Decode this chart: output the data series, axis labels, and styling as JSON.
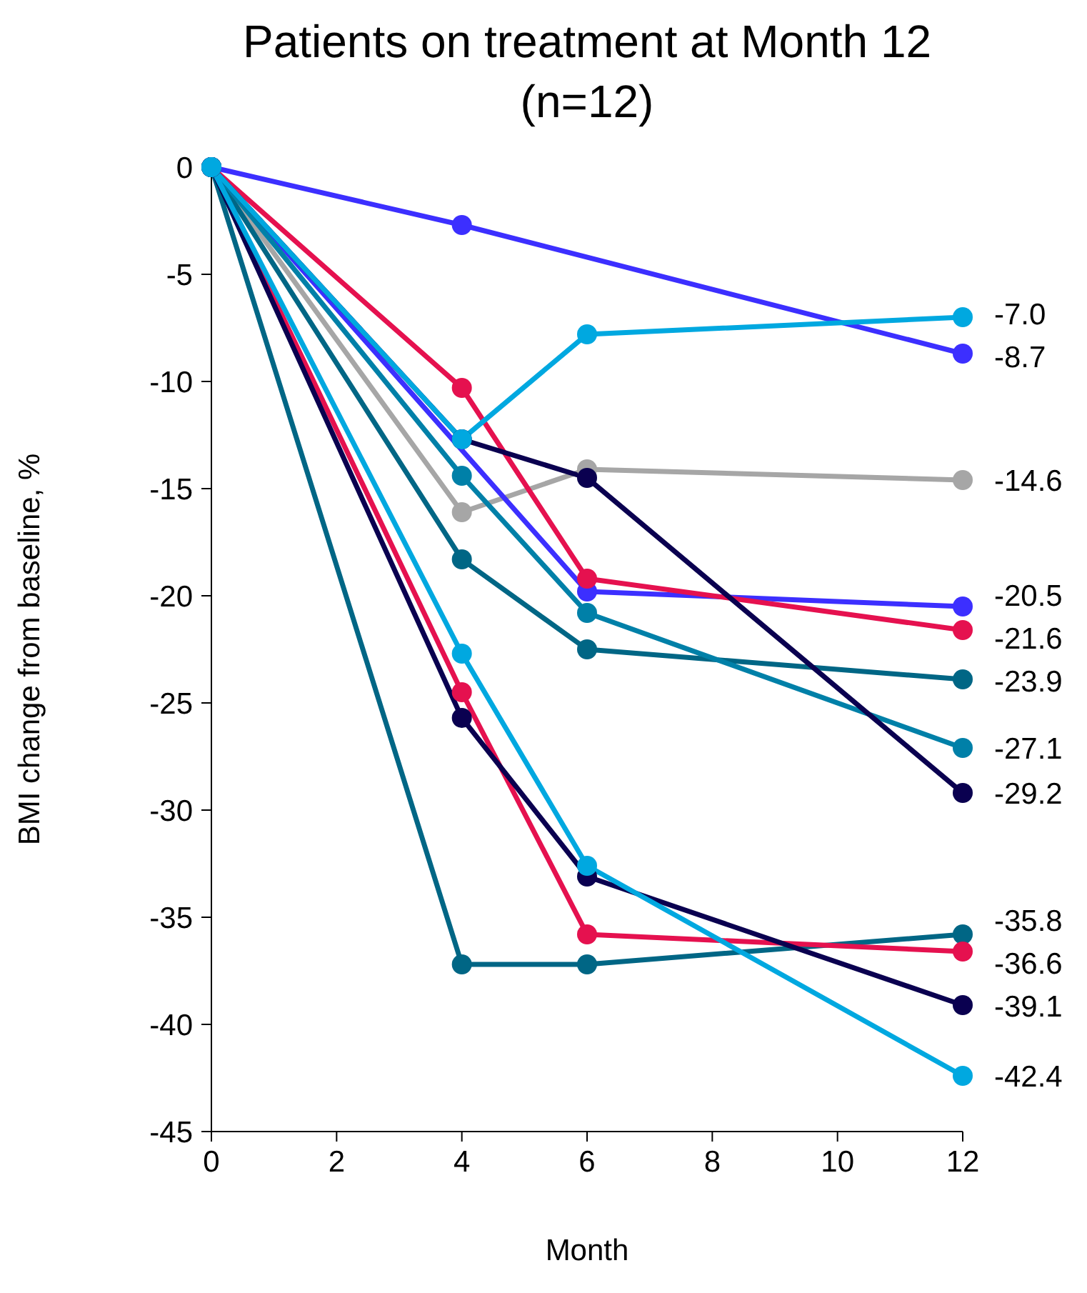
{
  "chart_data": {
    "type": "line",
    "title": "Patients on treatment at Month 12\n(n=12)",
    "xlabel": "Month",
    "ylabel": "BMI change from baseline, %",
    "x": [
      0,
      4,
      6,
      12
    ],
    "xlim": [
      0,
      12
    ],
    "xticks": [
      0,
      2,
      4,
      6,
      8,
      10,
      12
    ],
    "ylim": [
      -45,
      0
    ],
    "yticks": [
      -45,
      -40,
      -35,
      -30,
      -25,
      -20,
      -15,
      -10,
      -5,
      0
    ],
    "grid": false,
    "legend": false,
    "marker": "circle",
    "line_style": "solid",
    "series": [
      {
        "color": "#3c2fff",
        "values": [
          0,
          -2.7,
          null,
          -8.7
        ],
        "value_labels": [
          null,
          null,
          null,
          "-8.7"
        ]
      },
      {
        "color": "#a6a6a6",
        "values": [
          0,
          -16.1,
          -14.1,
          -14.6
        ],
        "value_labels": [
          null,
          null,
          null,
          "-14.6"
        ]
      },
      {
        "color": "#3c2fff",
        "values": [
          0,
          null,
          -19.8,
          -20.5
        ],
        "value_labels": [
          null,
          null,
          null,
          "-20.5"
        ]
      },
      {
        "color": "#e5114f",
        "values": [
          0,
          -10.3,
          -19.2,
          -21.6
        ],
        "value_labels": [
          null,
          null,
          null,
          "-21.6"
        ]
      },
      {
        "color": "#006685",
        "values": [
          0,
          -18.3,
          -22.5,
          -23.9
        ],
        "value_labels": [
          null,
          null,
          null,
          "-23.9"
        ]
      },
      {
        "color": "#0080a8",
        "values": [
          0,
          -14.4,
          -20.8,
          -27.1
        ],
        "value_labels": [
          null,
          null,
          null,
          "-27.1"
        ]
      },
      {
        "color": "#0a0050",
        "values": [
          0,
          -12.7,
          -14.5,
          -29.2
        ],
        "value_labels": [
          null,
          null,
          null,
          "-29.2"
        ]
      },
      {
        "color": "#006685",
        "values": [
          0,
          -37.2,
          -37.2,
          -35.8
        ],
        "value_labels": [
          null,
          null,
          null,
          "-35.8"
        ]
      },
      {
        "color": "#e5114f",
        "values": [
          0,
          -24.5,
          -35.8,
          -36.6
        ],
        "value_labels": [
          null,
          null,
          null,
          "-36.6"
        ]
      },
      {
        "color": "#0a0050",
        "values": [
          0,
          -25.7,
          -33.1,
          -39.1
        ],
        "value_labels": [
          null,
          null,
          null,
          "-39.1"
        ]
      },
      {
        "color": "#00a8e0",
        "values": [
          0,
          -22.7,
          -32.6,
          -42.4
        ],
        "value_labels": [
          null,
          null,
          null,
          "-42.4"
        ]
      },
      {
        "color": "#00a8e0",
        "values": [
          0,
          -12.7,
          -7.8,
          -7.0
        ],
        "value_labels": [
          null,
          null,
          null,
          "-7.0"
        ]
      }
    ]
  }
}
